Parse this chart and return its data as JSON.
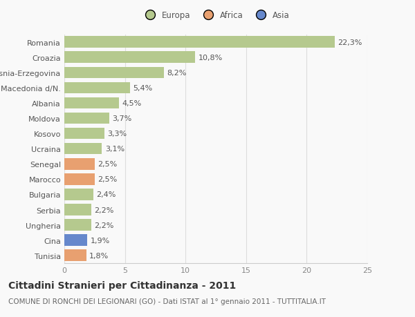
{
  "categories": [
    "Tunisia",
    "Cina",
    "Ungheria",
    "Serbia",
    "Bulgaria",
    "Marocco",
    "Senegal",
    "Ucraina",
    "Kosovo",
    "Moldova",
    "Albania",
    "Macedonia d/N.",
    "Bosnia-Erzegovina",
    "Croazia",
    "Romania"
  ],
  "values": [
    1.8,
    1.9,
    2.2,
    2.2,
    2.4,
    2.5,
    2.5,
    3.1,
    3.3,
    3.7,
    4.5,
    5.4,
    8.2,
    10.8,
    22.3
  ],
  "labels": [
    "1,8%",
    "1,9%",
    "2,2%",
    "2,2%",
    "2,4%",
    "2,5%",
    "2,5%",
    "3,1%",
    "3,3%",
    "3,7%",
    "4,5%",
    "5,4%",
    "8,2%",
    "10,8%",
    "22,3%"
  ],
  "colors": [
    "#e8a070",
    "#6688cc",
    "#b5c98e",
    "#b5c98e",
    "#b5c98e",
    "#e8a070",
    "#e8a070",
    "#b5c98e",
    "#b5c98e",
    "#b5c98e",
    "#b5c98e",
    "#b5c98e",
    "#b5c98e",
    "#b5c98e",
    "#b5c98e"
  ],
  "continent": [
    "Africa",
    "Asia",
    "Europa",
    "Europa",
    "Europa",
    "Africa",
    "Africa",
    "Europa",
    "Europa",
    "Europa",
    "Europa",
    "Europa",
    "Europa",
    "Europa",
    "Europa"
  ],
  "legend_labels": [
    "Europa",
    "Africa",
    "Asia"
  ],
  "legend_colors": [
    "#b5c98e",
    "#e8a070",
    "#6688cc"
  ],
  "xlim": [
    0,
    25
  ],
  "xticks": [
    0,
    5,
    10,
    15,
    20,
    25
  ],
  "title_main": "Cittadini Stranieri per Cittadinanza - 2011",
  "title_sub": "COMUNE DI RONCHI DEI LEGIONARI (GO) - Dati ISTAT al 1° gennaio 2011 - TUTTITALIA.IT",
  "background_color": "#f9f9f9",
  "label_fontsize": 8.0,
  "tick_fontsize": 8.0,
  "title_fontsize": 10,
  "subtitle_fontsize": 7.5
}
